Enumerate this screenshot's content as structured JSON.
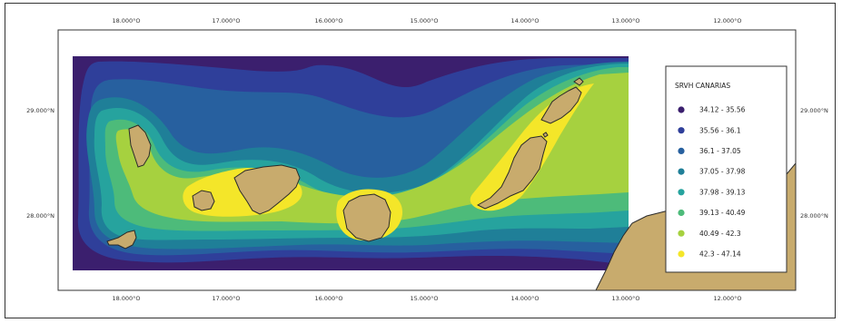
{
  "map": {
    "axes": {
      "top_ticks": [
        "18.000°O",
        "17.000°O",
        "16.000°O",
        "15.000°O",
        "14.000°O",
        "13.000°O",
        "12.000°O"
      ],
      "bottom_ticks": [
        "18.000°O",
        "17.000°O",
        "16.000°O",
        "15.000°O",
        "14.000°O",
        "13.000°O",
        "12.000°O"
      ],
      "left_ticks": [
        "29.000°N",
        "28.000°N"
      ],
      "right_ticks": [
        "29.000°N",
        "28.000°N"
      ]
    },
    "legend": {
      "title": "SRVH CANARIAS",
      "classes": [
        {
          "label": "34.12 - 35.56",
          "color": "#3b1f6e"
        },
        {
          "label": "35.56 - 36.1",
          "color": "#2f3f9a"
        },
        {
          "label": "36.1 - 37.05",
          "color": "#27609f"
        },
        {
          "label": "37.05 - 37.98",
          "color": "#1f7f98"
        },
        {
          "label": "37.98 - 39.13",
          "color": "#26a39e"
        },
        {
          "label": "39.13 - 40.49",
          "color": "#4dbb7a"
        },
        {
          "label": "40.49 - 42.3",
          "color": "#a6d13f"
        },
        {
          "label": "42.3 - 47.14",
          "color": "#f4e629"
        }
      ]
    },
    "colors": {
      "land": "#c8ab6d",
      "land_outline": "#2a2a2a",
      "frame": "#333333"
    }
  }
}
